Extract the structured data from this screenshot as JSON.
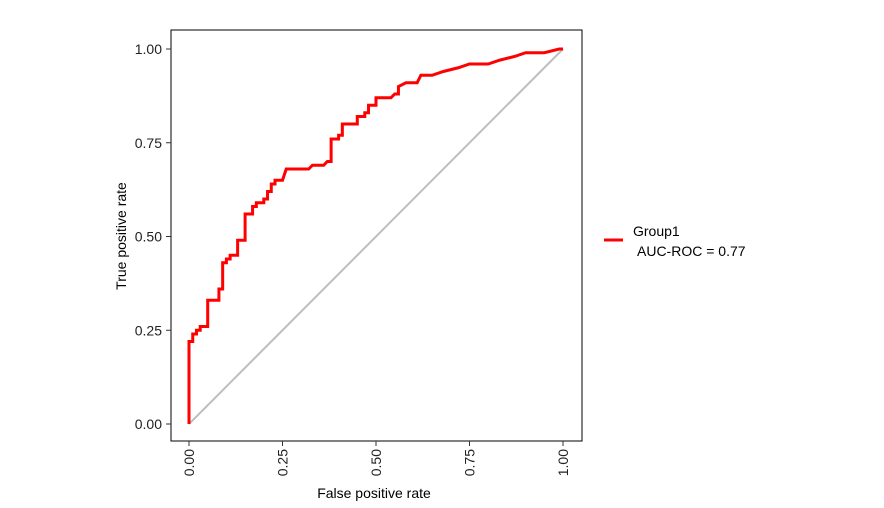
{
  "chart_data": {
    "type": "line",
    "title": "",
    "xlabel": "False positive rate",
    "ylabel": "True positive rate",
    "xlim": [
      0,
      1
    ],
    "ylim": [
      0,
      1
    ],
    "x_ticks": [
      "0.00",
      "0.25",
      "0.50",
      "0.75",
      "1.00"
    ],
    "y_ticks": [
      "0.00",
      "0.25",
      "0.50",
      "0.75",
      "1.00"
    ],
    "grid": false,
    "legend_position": "right",
    "reference_line": {
      "x": [
        0,
        1
      ],
      "y": [
        0,
        1
      ],
      "color": "#bebebe"
    },
    "series": [
      {
        "name": "Group1",
        "annotation": "AUC-ROC = 0.77",
        "color": "#ff0000",
        "points": [
          [
            0.0,
            0.0
          ],
          [
            0.0,
            0.22
          ],
          [
            0.01,
            0.22
          ],
          [
            0.01,
            0.24
          ],
          [
            0.02,
            0.24
          ],
          [
            0.02,
            0.25
          ],
          [
            0.03,
            0.25
          ],
          [
            0.03,
            0.26
          ],
          [
            0.05,
            0.26
          ],
          [
            0.05,
            0.33
          ],
          [
            0.08,
            0.33
          ],
          [
            0.08,
            0.36
          ],
          [
            0.09,
            0.36
          ],
          [
            0.09,
            0.43
          ],
          [
            0.1,
            0.43
          ],
          [
            0.1,
            0.44
          ],
          [
            0.11,
            0.44
          ],
          [
            0.11,
            0.45
          ],
          [
            0.13,
            0.45
          ],
          [
            0.13,
            0.49
          ],
          [
            0.15,
            0.49
          ],
          [
            0.15,
            0.56
          ],
          [
            0.17,
            0.56
          ],
          [
            0.17,
            0.58
          ],
          [
            0.18,
            0.58
          ],
          [
            0.18,
            0.59
          ],
          [
            0.2,
            0.59
          ],
          [
            0.2,
            0.6
          ],
          [
            0.21,
            0.6
          ],
          [
            0.21,
            0.62
          ],
          [
            0.22,
            0.62
          ],
          [
            0.22,
            0.64
          ],
          [
            0.23,
            0.64
          ],
          [
            0.23,
            0.65
          ],
          [
            0.25,
            0.65
          ],
          [
            0.26,
            0.68
          ],
          [
            0.32,
            0.68
          ],
          [
            0.33,
            0.69
          ],
          [
            0.36,
            0.69
          ],
          [
            0.37,
            0.7
          ],
          [
            0.38,
            0.7
          ],
          [
            0.38,
            0.76
          ],
          [
            0.4,
            0.76
          ],
          [
            0.4,
            0.77
          ],
          [
            0.41,
            0.77
          ],
          [
            0.41,
            0.8
          ],
          [
            0.45,
            0.8
          ],
          [
            0.45,
            0.82
          ],
          [
            0.47,
            0.82
          ],
          [
            0.47,
            0.83
          ],
          [
            0.48,
            0.83
          ],
          [
            0.48,
            0.85
          ],
          [
            0.5,
            0.85
          ],
          [
            0.5,
            0.87
          ],
          [
            0.54,
            0.87
          ],
          [
            0.55,
            0.88
          ],
          [
            0.56,
            0.88
          ],
          [
            0.56,
            0.9
          ],
          [
            0.58,
            0.91
          ],
          [
            0.61,
            0.91
          ],
          [
            0.62,
            0.93
          ],
          [
            0.65,
            0.93
          ],
          [
            0.68,
            0.94
          ],
          [
            0.72,
            0.95
          ],
          [
            0.75,
            0.96
          ],
          [
            0.8,
            0.96
          ],
          [
            0.83,
            0.97
          ],
          [
            0.87,
            0.98
          ],
          [
            0.9,
            0.99
          ],
          [
            0.95,
            0.99
          ],
          [
            0.99,
            1.0
          ],
          [
            1.0,
            1.0
          ]
        ]
      }
    ]
  }
}
